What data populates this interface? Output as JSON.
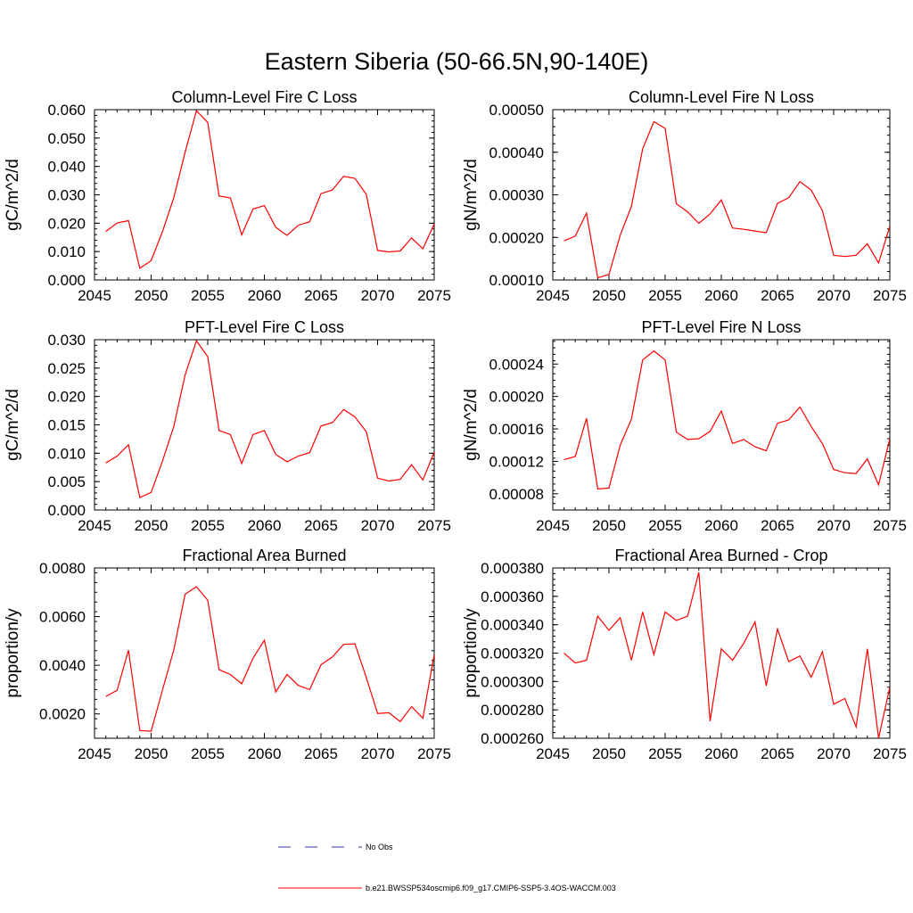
{
  "figure": {
    "title": "Eastern Siberia (50-66.5N,90-140E)",
    "legend": [
      {
        "label": "No Obs",
        "color": "#3333aa",
        "dash": true
      },
      {
        "label": "b.e21.BWSSP534oscmip6.f09_g17.CMIP6-SSP5-3.4OS-WACCM.003",
        "color": "#ff0000",
        "dash": false
      }
    ]
  },
  "chart_data": [
    {
      "type": "line",
      "title": "Column-Level Fire C Loss",
      "ylabel": "gC/m^2/d",
      "xlim": [
        2045,
        2075
      ],
      "ylim": [
        0,
        0.06
      ],
      "xticks": [
        "2045",
        "2050",
        "2055",
        "2060",
        "2065",
        "2070",
        "2075"
      ],
      "yticks": [
        "0.000",
        "0.010",
        "0.020",
        "0.030",
        "0.040",
        "0.050",
        "0.060"
      ],
      "x": [
        2046,
        2047,
        2048,
        2049,
        2050,
        2051,
        2052,
        2053,
        2054,
        2055,
        2056,
        2057,
        2058,
        2059,
        2060,
        2061,
        2062,
        2063,
        2064,
        2065,
        2066,
        2067,
        2068,
        2069,
        2070,
        2071,
        2072,
        2073,
        2074,
        2075
      ],
      "series": [
        {
          "color": "#ff0000",
          "values": [
            0.0171,
            0.0201,
            0.0209,
            0.0041,
            0.0068,
            0.017,
            0.029,
            0.045,
            0.0596,
            0.0555,
            0.0296,
            0.0289,
            0.0159,
            0.025,
            0.0262,
            0.0186,
            0.0157,
            0.0193,
            0.0205,
            0.0304,
            0.0317,
            0.0365,
            0.0358,
            0.0302,
            0.0104,
            0.0099,
            0.0102,
            0.0148,
            0.011,
            0.0197
          ]
        }
      ]
    },
    {
      "type": "line",
      "title": "Column-Level Fire N Loss",
      "ylabel": "gN/m^2/d",
      "xlim": [
        2045,
        2075
      ],
      "ylim": [
        0.0001,
        0.0005
      ],
      "xticks": [
        "2045",
        "2050",
        "2055",
        "2060",
        "2065",
        "2070",
        "2075"
      ],
      "yticks": [
        "0.00010",
        "0.00020",
        "0.00030",
        "0.00040",
        "0.00050"
      ],
      "x": [
        2046,
        2047,
        2048,
        2049,
        2050,
        2051,
        2052,
        2053,
        2054,
        2055,
        2056,
        2057,
        2058,
        2059,
        2060,
        2061,
        2062,
        2063,
        2064,
        2065,
        2066,
        2067,
        2068,
        2069,
        2070,
        2071,
        2072,
        2073,
        2074,
        2075
      ],
      "series": [
        {
          "color": "#ff0000",
          "values": [
            0.000192,
            0.000203,
            0.000257,
            0.000105,
            0.000113,
            0.000205,
            0.000273,
            0.000408,
            0.000472,
            0.000456,
            0.000279,
            0.00026,
            0.000233,
            0.000255,
            0.000288,
            0.000222,
            0.000219,
            0.000215,
            0.000211,
            0.00028,
            0.000293,
            0.000331,
            0.000311,
            0.000263,
            0.000158,
            0.000155,
            0.000158,
            0.000185,
            0.00014,
            0.000226
          ]
        }
      ]
    },
    {
      "type": "line",
      "title": "PFT-Level Fire C Loss",
      "ylabel": "gC/m^2/d",
      "xlim": [
        2045,
        2075
      ],
      "ylim": [
        0,
        0.03
      ],
      "xticks": [
        "2045",
        "2050",
        "2055",
        "2060",
        "2065",
        "2070",
        "2075"
      ],
      "yticks": [
        "0.000",
        "0.005",
        "0.010",
        "0.015",
        "0.020",
        "0.025",
        "0.030"
      ],
      "x": [
        2046,
        2047,
        2048,
        2049,
        2050,
        2051,
        2052,
        2053,
        2054,
        2055,
        2056,
        2057,
        2058,
        2059,
        2060,
        2061,
        2062,
        2063,
        2064,
        2065,
        2066,
        2067,
        2068,
        2069,
        2070,
        2071,
        2072,
        2073,
        2074,
        2075
      ],
      "series": [
        {
          "color": "#ff0000",
          "values": [
            0.0083,
            0.0095,
            0.0115,
            0.0022,
            0.0031,
            0.0086,
            0.0147,
            0.0238,
            0.0298,
            0.027,
            0.014,
            0.0133,
            0.0082,
            0.0133,
            0.014,
            0.0098,
            0.0085,
            0.0095,
            0.0101,
            0.0148,
            0.0154,
            0.0177,
            0.0164,
            0.0138,
            0.0056,
            0.0051,
            0.0054,
            0.008,
            0.0053,
            0.0102
          ]
        }
      ]
    },
    {
      "type": "line",
      "title": "PFT-Level Fire N Loss",
      "ylabel": "gN/m^2/d",
      "xlim": [
        2045,
        2075
      ],
      "ylim": [
        6e-05,
        0.00027
      ],
      "xticks": [
        "2045",
        "2050",
        "2055",
        "2060",
        "2065",
        "2070",
        "2075"
      ],
      "yticks": [
        "0.00008",
        "0.00012",
        "0.00016",
        "0.00020",
        "0.00024"
      ],
      "x": [
        2046,
        2047,
        2048,
        2049,
        2050,
        2051,
        2052,
        2053,
        2054,
        2055,
        2056,
        2057,
        2058,
        2059,
        2060,
        2061,
        2062,
        2063,
        2064,
        2065,
        2066,
        2067,
        2068,
        2069,
        2070,
        2071,
        2072,
        2073,
        2074,
        2075
      ],
      "series": [
        {
          "color": "#ff0000",
          "values": [
            0.000122,
            0.000126,
            0.000173,
            8.6e-05,
            8.7e-05,
            0.00014,
            0.000172,
            0.000245,
            0.000256,
            0.000245,
            0.000156,
            0.000147,
            0.000148,
            0.000157,
            0.000182,
            0.000142,
            0.000147,
            0.000138,
            0.000133,
            0.000167,
            0.000171,
            0.000187,
            0.000163,
            0.000142,
            0.00011,
            0.000106,
            0.000105,
            0.000123,
            9.1e-05,
            0.000148
          ]
        }
      ]
    },
    {
      "type": "line",
      "title": "Fractional Area Burned",
      "ylabel": "proportion/y",
      "xlim": [
        2045,
        2075
      ],
      "ylim": [
        0.001,
        0.008
      ],
      "xticks": [
        "2045",
        "2050",
        "2055",
        "2060",
        "2065",
        "2070",
        "2075"
      ],
      "yticks": [
        "0.0020",
        "0.0040",
        "0.0060",
        "0.0080"
      ],
      "x": [
        2046,
        2047,
        2048,
        2049,
        2050,
        2051,
        2052,
        2053,
        2054,
        2055,
        2056,
        2057,
        2058,
        2059,
        2060,
        2061,
        2062,
        2063,
        2064,
        2065,
        2066,
        2067,
        2068,
        2069,
        2070,
        2071,
        2072,
        2073,
        2074,
        2075
      ],
      "series": [
        {
          "color": "#ff0000",
          "values": [
            0.00272,
            0.00297,
            0.00462,
            0.00132,
            0.00129,
            0.00298,
            0.00463,
            0.00692,
            0.00723,
            0.00667,
            0.00382,
            0.00362,
            0.00324,
            0.00429,
            0.00503,
            0.0029,
            0.00362,
            0.00317,
            0.003,
            0.00402,
            0.00434,
            0.00486,
            0.00488,
            0.0035,
            0.00202,
            0.00205,
            0.00168,
            0.0023,
            0.00182,
            0.00445
          ]
        }
      ]
    },
    {
      "type": "line",
      "title": "Fractional Area Burned - Crop",
      "ylabel": "proportion/y",
      "xlim": [
        2045,
        2075
      ],
      "ylim": [
        0.00026,
        0.00038
      ],
      "xticks": [
        "2045",
        "2050",
        "2055",
        "2060",
        "2065",
        "2070",
        "2075"
      ],
      "yticks": [
        "0.000260",
        "0.000280",
        "0.000300",
        "0.000320",
        "0.000340",
        "0.000360",
        "0.000380"
      ],
      "x": [
        2046,
        2047,
        2048,
        2049,
        2050,
        2051,
        2052,
        2053,
        2054,
        2055,
        2056,
        2057,
        2058,
        2059,
        2060,
        2061,
        2062,
        2063,
        2064,
        2065,
        2066,
        2067,
        2068,
        2069,
        2070,
        2071,
        2072,
        2073,
        2074,
        2075
      ],
      "series": [
        {
          "color": "#ff0000",
          "values": [
            0.00032,
            0.000313,
            0.000315,
            0.000346,
            0.000336,
            0.000345,
            0.000315,
            0.000349,
            0.000319,
            0.000349,
            0.000343,
            0.000346,
            0.000377,
            0.000272,
            0.000323,
            0.000315,
            0.000327,
            0.000342,
            0.000297,
            0.000337,
            0.000314,
            0.000318,
            0.000303,
            0.000321,
            0.000284,
            0.000288,
            0.000268,
            0.000323,
            0.00026,
            0.000296
          ]
        }
      ]
    }
  ]
}
